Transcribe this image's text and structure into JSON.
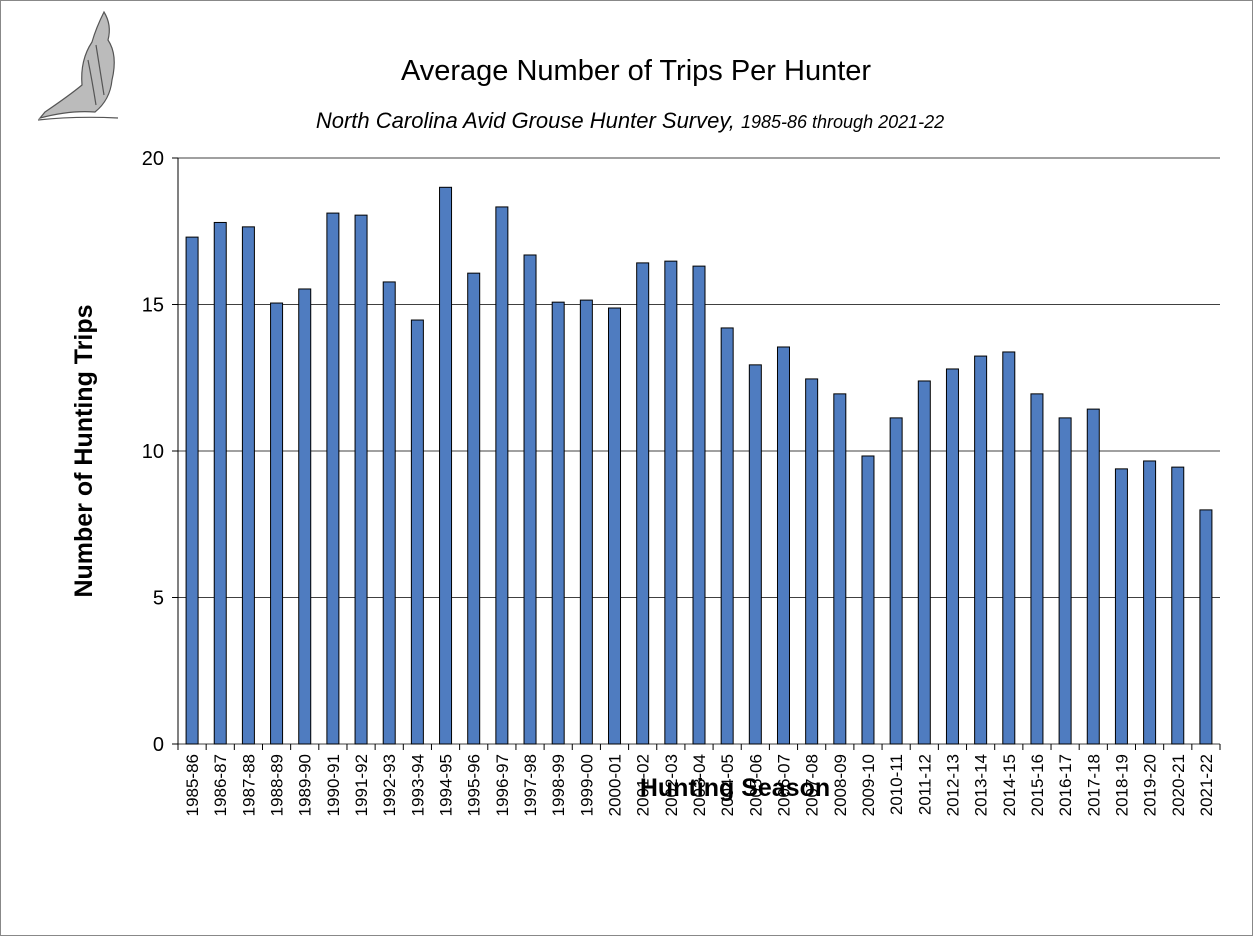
{
  "chart_data": {
    "type": "bar",
    "title": "Average Number of Trips Per Hunter",
    "subtitle": [
      "North Carolina Avid Grouse Hunter Survey,",
      "1985-86 through 2021-22"
    ],
    "x_label": "Hunting Season",
    "y_label": "Number of Hunting Trips",
    "categories": [
      "1985-86",
      "1986-87",
      "1987-88",
      "1988-89",
      "1989-90",
      "1990-91",
      "1991-92",
      "1992-93",
      "1993-94",
      "1994-95",
      "1995-96",
      "1996-97",
      "1997-98",
      "1998-99",
      "1999-00",
      "2000-01",
      "2001-02",
      "2002-03",
      "2003-04",
      "2004-05",
      "2005-06",
      "2006-07",
      "2007-08",
      "2008-09",
      "2009-10",
      "2010-11",
      "2011-12",
      "2012-13",
      "2013-14",
      "2014-15",
      "2015-16",
      "2016-17",
      "2017-18",
      "2018-19",
      "2019-20",
      "2020-21",
      "2021-22"
    ],
    "values": [
      17.3,
      17.8,
      17.65,
      15.05,
      15.53,
      18.12,
      18.05,
      15.77,
      14.47,
      19.0,
      16.07,
      18.33,
      16.69,
      15.08,
      15.15,
      14.88,
      16.42,
      16.48,
      16.31,
      14.2,
      12.94,
      13.55,
      12.46,
      11.95,
      9.83,
      11.13,
      12.39,
      12.8,
      13.24,
      13.38,
      11.95,
      11.13,
      11.43,
      9.39,
      9.66,
      9.45,
      7.99
    ],
    "color": "#4f7cc0",
    "ylim": [
      0,
      20
    ],
    "yticks": [
      0,
      5,
      10,
      15,
      20
    ],
    "grid": true
  }
}
